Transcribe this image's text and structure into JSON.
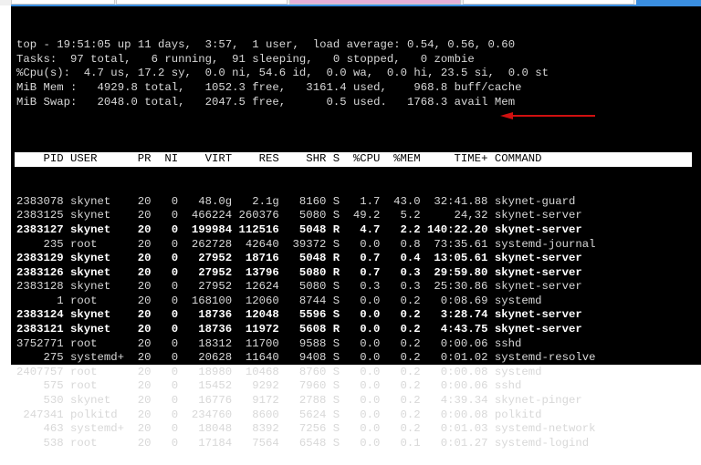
{
  "summary": [
    "top - 19:51:05 up 11 days,  3:57,  1 user,  load average: 0.54, 0.56, 0.60",
    "Tasks:  97 total,   6 running,  91 sleeping,   0 stopped,   0 zombie",
    "%Cpu(s):  4.7 us, 17.2 sy,  0.0 ni, 54.6 id,  0.0 wa,  0.0 hi, 23.5 si,  0.0 st",
    "MiB Mem :   4929.8 total,   1052.3 free,   3161.4 used,    968.8 buff/cache",
    "MiB Swap:   2048.0 total,   2047.5 free,      0.5 used.   1768.3 avail Mem"
  ],
  "columns": [
    "PID",
    "USER",
    "PR",
    "NI",
    "VIRT",
    "RES",
    "SHR",
    "S",
    "%CPU",
    "%MEM",
    "TIME+",
    "COMMAND"
  ],
  "rows": [
    {
      "pid": "2383078",
      "user": "skynet",
      "pr": "20",
      "ni": "0",
      "virt": "48.0g",
      "res": "2.1g",
      "shr": "8160",
      "s": "S",
      "cpu": "1.7",
      "mem": "43.0",
      "time": "32:41.88",
      "cmd": "skynet-guard",
      "bold": false
    },
    {
      "pid": "2383125",
      "user": "skynet",
      "pr": "20",
      "ni": "0",
      "virt": "466224",
      "res": "260376",
      "shr": "5080",
      "s": "S",
      "cpu": "49.2",
      "mem": "5.2",
      "time": "24,32",
      "cmd": "skynet-server",
      "bold": false
    },
    {
      "pid": "2383127",
      "user": "skynet",
      "pr": "20",
      "ni": "0",
      "virt": "199984",
      "res": "112516",
      "shr": "5048",
      "s": "R",
      "cpu": "4.7",
      "mem": "2.2",
      "time": "140:22.20",
      "cmd": "skynet-server",
      "bold": true
    },
    {
      "pid": "235",
      "user": "root",
      "pr": "20",
      "ni": "0",
      "virt": "262728",
      "res": "42640",
      "shr": "39372",
      "s": "S",
      "cpu": "0.0",
      "mem": "0.8",
      "time": "73:35.61",
      "cmd": "systemd-journal",
      "bold": false
    },
    {
      "pid": "2383129",
      "user": "skynet",
      "pr": "20",
      "ni": "0",
      "virt": "27952",
      "res": "18716",
      "shr": "5048",
      "s": "R",
      "cpu": "0.7",
      "mem": "0.4",
      "time": "13:05.61",
      "cmd": "skynet-server",
      "bold": true
    },
    {
      "pid": "2383126",
      "user": "skynet",
      "pr": "20",
      "ni": "0",
      "virt": "27952",
      "res": "13796",
      "shr": "5080",
      "s": "R",
      "cpu": "0.7",
      "mem": "0.3",
      "time": "29:59.80",
      "cmd": "skynet-server",
      "bold": true
    },
    {
      "pid": "2383128",
      "user": "skynet",
      "pr": "20",
      "ni": "0",
      "virt": "27952",
      "res": "12624",
      "shr": "5080",
      "s": "S",
      "cpu": "0.3",
      "mem": "0.3",
      "time": "25:30.86",
      "cmd": "skynet-server",
      "bold": false
    },
    {
      "pid": "1",
      "user": "root",
      "pr": "20",
      "ni": "0",
      "virt": "168100",
      "res": "12060",
      "shr": "8744",
      "s": "S",
      "cpu": "0.0",
      "mem": "0.2",
      "time": "0:08.69",
      "cmd": "systemd",
      "bold": false
    },
    {
      "pid": "2383124",
      "user": "skynet",
      "pr": "20",
      "ni": "0",
      "virt": "18736",
      "res": "12048",
      "shr": "5596",
      "s": "S",
      "cpu": "0.0",
      "mem": "0.2",
      "time": "3:28.74",
      "cmd": "skynet-server",
      "bold": true
    },
    {
      "pid": "2383121",
      "user": "skynet",
      "pr": "20",
      "ni": "0",
      "virt": "18736",
      "res": "11972",
      "shr": "5608",
      "s": "R",
      "cpu": "0.0",
      "mem": "0.2",
      "time": "4:43.75",
      "cmd": "skynet-server",
      "bold": true
    },
    {
      "pid": "3752771",
      "user": "root",
      "pr": "20",
      "ni": "0",
      "virt": "18312",
      "res": "11700",
      "shr": "9588",
      "s": "S",
      "cpu": "0.0",
      "mem": "0.2",
      "time": "0:00.06",
      "cmd": "sshd",
      "bold": false
    },
    {
      "pid": "275",
      "user": "systemd+",
      "pr": "20",
      "ni": "0",
      "virt": "20628",
      "res": "11640",
      "shr": "9408",
      "s": "S",
      "cpu": "0.0",
      "mem": "0.2",
      "time": "0:01.02",
      "cmd": "systemd-resolve",
      "bold": false
    },
    {
      "pid": "2407757",
      "user": "root",
      "pr": "20",
      "ni": "0",
      "virt": "18980",
      "res": "10468",
      "shr": "8760",
      "s": "S",
      "cpu": "0.0",
      "mem": "0.2",
      "time": "0:00.08",
      "cmd": "systemd",
      "bold": false
    },
    {
      "pid": "575",
      "user": "root",
      "pr": "20",
      "ni": "0",
      "virt": "15452",
      "res": "9292",
      "shr": "7960",
      "s": "S",
      "cpu": "0.0",
      "mem": "0.2",
      "time": "0:00.06",
      "cmd": "sshd",
      "bold": false
    },
    {
      "pid": "530",
      "user": "skynet",
      "pr": "20",
      "ni": "0",
      "virt": "16776",
      "res": "9172",
      "shr": "2788",
      "s": "S",
      "cpu": "0.0",
      "mem": "0.2",
      "time": "4:39.34",
      "cmd": "skynet-pinger",
      "bold": false
    },
    {
      "pid": "247341",
      "user": "polkitd",
      "pr": "20",
      "ni": "0",
      "virt": "234760",
      "res": "8600",
      "shr": "5624",
      "s": "S",
      "cpu": "0.0",
      "mem": "0.2",
      "time": "0:00.08",
      "cmd": "polkitd",
      "bold": false
    },
    {
      "pid": "463",
      "user": "systemd+",
      "pr": "20",
      "ni": "0",
      "virt": "18048",
      "res": "8392",
      "shr": "7256",
      "s": "S",
      "cpu": "0.0",
      "mem": "0.2",
      "time": "0:01.03",
      "cmd": "systemd-network",
      "bold": false
    },
    {
      "pid": "538",
      "user": "root",
      "pr": "20",
      "ni": "0",
      "virt": "17184",
      "res": "7564",
      "shr": "6548",
      "s": "S",
      "cpu": "0.0",
      "mem": "0.1",
      "time": "0:01.27",
      "cmd": "systemd-logind",
      "bold": false
    }
  ],
  "annotation": {
    "arrow_color": "#d01010",
    "points_to_row": "2383078"
  }
}
